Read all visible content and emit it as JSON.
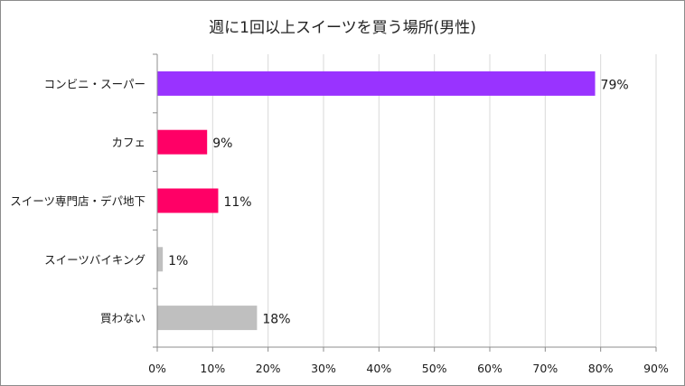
{
  "chart_data": {
    "type": "bar",
    "orientation": "horizontal",
    "title": "週に1回以上スイーツを買う場所(男性)",
    "categories": [
      "コンビニ・スーパー",
      "カフェ",
      "スイーツ専門店・デパ地下",
      "スイーツバイキング",
      "買わない"
    ],
    "values": [
      79,
      9,
      11,
      1,
      18
    ],
    "data_labels": [
      "79%",
      "9%",
      "11%",
      "1%",
      "18%"
    ],
    "bar_colors": [
      "#9933ff",
      "#ff0066",
      "#ff0066",
      "#bfbfbf",
      "#bfbfbf"
    ],
    "xlim": [
      0,
      90
    ],
    "x_ticks": [
      "0%",
      "10%",
      "20%",
      "30%",
      "40%",
      "50%",
      "60%",
      "70%",
      "80%",
      "90%"
    ],
    "grid": true,
    "legend": "none"
  }
}
